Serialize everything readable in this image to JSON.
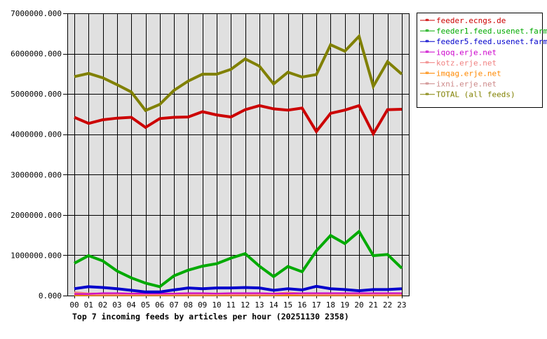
{
  "chart_data": {
    "type": "line",
    "title": "Top 7 incoming feeds by articles per hour (20251130 2358)",
    "xlabel": "",
    "ylabel": "",
    "ylim": [
      0,
      7000000
    ],
    "yticks": [
      "0.000",
      "1000000.000",
      "2000000.000",
      "3000000.000",
      "4000000.000",
      "5000000.000",
      "6000000.000",
      "7000000.000"
    ],
    "grid": true,
    "legend_position": "right",
    "categories": [
      "00",
      "01",
      "02",
      "03",
      "04",
      "05",
      "06",
      "07",
      "08",
      "09",
      "10",
      "11",
      "12",
      "13",
      "14",
      "15",
      "16",
      "17",
      "18",
      "19",
      "20",
      "21",
      "22",
      "23"
    ],
    "series": [
      {
        "name": "feeder.ecngs.de",
        "color": "#cc0000",
        "values": [
          4420000,
          4270000,
          4360000,
          4400000,
          4420000,
          4170000,
          4390000,
          4420000,
          4430000,
          4560000,
          4480000,
          4430000,
          4610000,
          4710000,
          4630000,
          4600000,
          4650000,
          4070000,
          4520000,
          4600000,
          4710000,
          4010000,
          4610000,
          4620000
        ]
      },
      {
        "name": "feeder1.feed.usenet.farm",
        "color": "#00aa00",
        "values": [
          800000,
          990000,
          860000,
          610000,
          440000,
          310000,
          220000,
          490000,
          630000,
          730000,
          790000,
          930000,
          1040000,
          730000,
          470000,
          720000,
          590000,
          1110000,
          1490000,
          1290000,
          1590000,
          990000,
          1020000,
          680000
        ]
      },
      {
        "name": "feeder5.feed.usenet.farm",
        "color": "#0000cc",
        "values": [
          170000,
          220000,
          200000,
          170000,
          130000,
          90000,
          90000,
          140000,
          190000,
          170000,
          190000,
          190000,
          200000,
          190000,
          130000,
          170000,
          140000,
          230000,
          170000,
          150000,
          120000,
          150000,
          150000,
          170000
        ]
      },
      {
        "name": "iqoq.erje.net",
        "color": "#cc00cc",
        "values": [
          40000,
          40000,
          60000,
          60000,
          50000,
          50000,
          50000,
          50000,
          60000,
          60000,
          50000,
          60000,
          60000,
          60000,
          50000,
          50000,
          60000,
          60000,
          60000,
          60000,
          60000,
          60000,
          60000,
          60000
        ]
      },
      {
        "name": "kotz.erje.net",
        "color": "#f08080",
        "values": [
          70000,
          40000,
          40000,
          40000,
          40000,
          40000,
          40000,
          40000,
          40000,
          40000,
          40000,
          40000,
          40000,
          40000,
          40000,
          60000,
          40000,
          40000,
          40000,
          40000,
          40000,
          40000,
          40000,
          40000
        ]
      },
      {
        "name": "imqag.erje.net",
        "color": "#ff8800",
        "values": [
          20000,
          20000,
          20000,
          20000,
          20000,
          20000,
          20000,
          20000,
          20000,
          20000,
          20000,
          20000,
          20000,
          20000,
          20000,
          20000,
          20000,
          20000,
          20000,
          20000,
          20000,
          20000,
          20000,
          20000
        ]
      },
      {
        "name": "ixni.erje.net",
        "color": "#cc8888",
        "values": [
          30000,
          30000,
          30000,
          30000,
          30000,
          30000,
          30000,
          30000,
          30000,
          30000,
          30000,
          30000,
          30000,
          30000,
          30000,
          30000,
          30000,
          30000,
          30000,
          30000,
          30000,
          30000,
          30000,
          30000
        ]
      },
      {
        "name": "TOTAL (all feeds)",
        "color": "#808000",
        "values": [
          5430000,
          5510000,
          5400000,
          5230000,
          5050000,
          4590000,
          4740000,
          5090000,
          5320000,
          5490000,
          5490000,
          5610000,
          5870000,
          5690000,
          5250000,
          5540000,
          5420000,
          5480000,
          6220000,
          6060000,
          6430000,
          5190000,
          5800000,
          5490000
        ]
      }
    ]
  },
  "colors": {
    "plot_background": "#e0e0e0",
    "grid": "#000000",
    "page_background": "#ffffff"
  }
}
